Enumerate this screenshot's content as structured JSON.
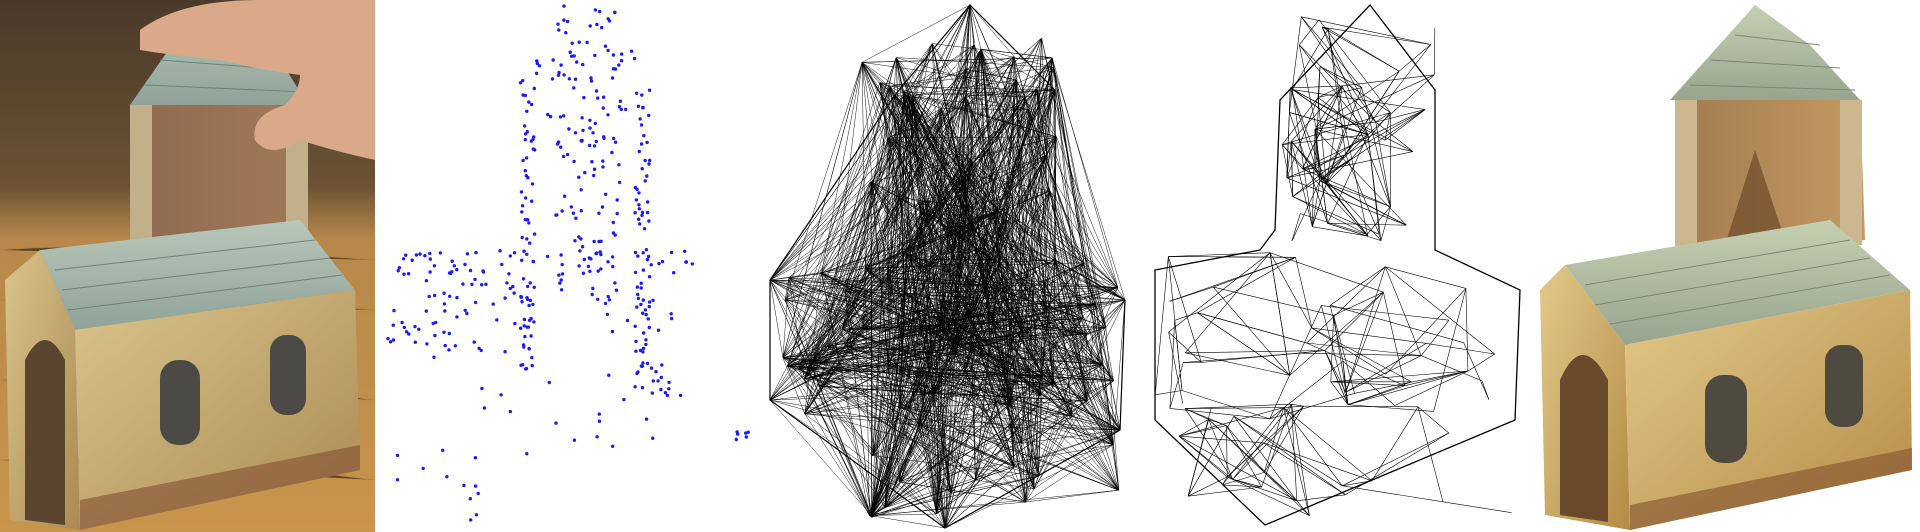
{
  "figure": {
    "panels": [
      {
        "id": "photo",
        "content": "input-photograph"
      },
      {
        "id": "points",
        "content": "sparse-3d-point-cloud",
        "point_color": "#1a1aff"
      },
      {
        "id": "dense",
        "content": "dense-delaunay-tetrahedralization",
        "stroke_color": "#000000"
      },
      {
        "id": "sparse",
        "content": "carved-surface-wireframe",
        "stroke_color": "#000000"
      },
      {
        "id": "render",
        "content": "textured-reconstruction"
      }
    ]
  }
}
